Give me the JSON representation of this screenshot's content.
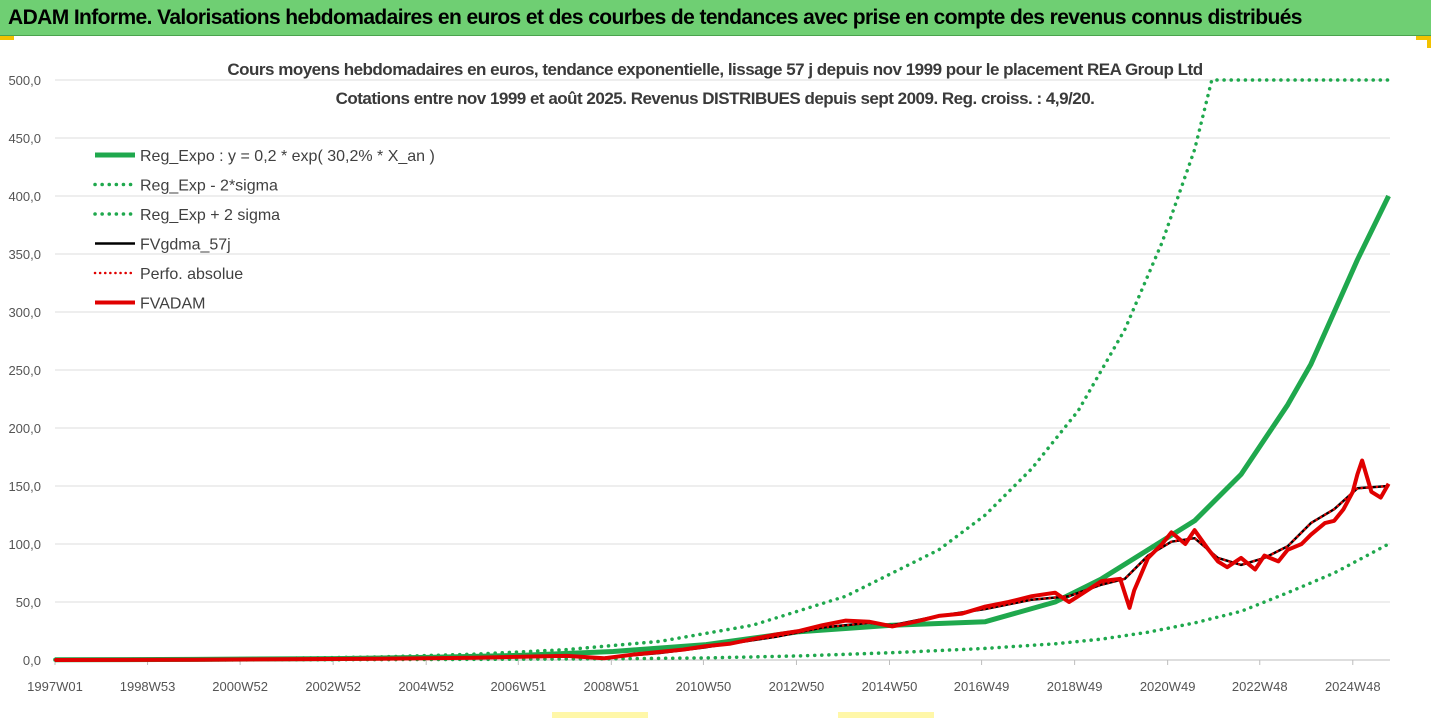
{
  "banner": {
    "title": "ADAM Informe. Valorisations hebdomadaires en euros et des courbes de tendances avec prise en compte des revenus connus distribués"
  },
  "chart_data": {
    "type": "line",
    "title_line1": "Cours moyens hebdomadaires en euros, tendance exponentielle, lissage 57 j depuis nov 1999 pour le placement REA Group Ltd",
    "title_line2": "Cotations entre nov 1999 et août 2025.  Revenus DISTRIBUES depuis sept 2009.  Reg. croiss. : 4,9/20.",
    "xlabel": "",
    "ylabel": "",
    "ylim": [
      0,
      500
    ],
    "grid": true,
    "legend_position": "top-left",
    "y_ticks": [
      "0,0",
      "50,0",
      "100,0",
      "150,0",
      "200,0",
      "250,0",
      "300,0",
      "350,0",
      "400,0",
      "450,0",
      "500,0"
    ],
    "x_ticks": [
      {
        "label": "1997W01",
        "year": 1997.0
      },
      {
        "label": "1998W53",
        "year": 1998.99
      },
      {
        "label": "2000W52",
        "year": 2000.98
      },
      {
        "label": "2002W52",
        "year": 2002.98
      },
      {
        "label": "2004W52",
        "year": 2004.98
      },
      {
        "label": "2006W51",
        "year": 2006.96
      },
      {
        "label": "2008W51",
        "year": 2008.96
      },
      {
        "label": "2010W50",
        "year": 2010.94
      },
      {
        "label": "2012W50",
        "year": 2012.94
      },
      {
        "label": "2014W50",
        "year": 2014.94
      },
      {
        "label": "2016W49",
        "year": 2016.92
      },
      {
        "label": "2018W49",
        "year": 2018.92
      },
      {
        "label": "2020W49",
        "year": 2020.92
      },
      {
        "label": "2022W48",
        "year": 2022.9
      },
      {
        "label": "2024W48",
        "year": 2024.9
      }
    ],
    "x_range": [
      1997.0,
      2025.7
    ],
    "series": [
      {
        "name": "Reg_Expo : y = 0,2 * exp( 30,2% *  X_an )",
        "color": "#1fa84d",
        "style": "solid",
        "width": 5,
        "x": [
          1997.0,
          2000.0,
          2003.0,
          2005.0,
          2007.0,
          2009.0,
          2011.0,
          2013.0,
          2015.0,
          2017.0,
          2018.5,
          2019.5,
          2020.5,
          2021.5,
          2022.5,
          2023.5,
          2024.0,
          2024.5,
          2025.0,
          2025.67
        ],
        "y": [
          0.2,
          0.5,
          1.2,
          2.2,
          4.0,
          7.3,
          13.3,
          24.4,
          30.0,
          33.0,
          50.0,
          70.0,
          95.0,
          120.0,
          160.0,
          220.0,
          255.0,
          300.0,
          345.0,
          400.0
        ]
      },
      {
        "name": "Reg_Exp - 2*sigma",
        "color": "#1fa84d",
        "style": "dotted",
        "width": 3.5,
        "x": [
          1997.0,
          2000.0,
          2003.0,
          2006.0,
          2009.0,
          2011.0,
          2013.0,
          2015.0,
          2017.0,
          2018.5,
          2019.5,
          2020.5,
          2021.5,
          2022.5,
          2023.5,
          2024.5,
          2025.67
        ],
        "y": [
          0.0,
          0.1,
          0.3,
          0.5,
          1.0,
          1.8,
          3.5,
          6.3,
          10.0,
          14.0,
          18.0,
          24.0,
          32.0,
          42.0,
          58.0,
          75.0,
          100.0
        ]
      },
      {
        "name": "Reg_Exp + 2 sigma",
        "color": "#1fa84d",
        "style": "dotted",
        "width": 3.5,
        "x": [
          1997.0,
          2000.0,
          2002.0,
          2004.0,
          2006.0,
          2008.0,
          2010.0,
          2012.0,
          2014.0,
          2016.0,
          2017.0,
          2018.0,
          2019.0,
          2020.0,
          2020.8,
          2021.5,
          2021.87,
          2022.5,
          2025.67
        ],
        "y": [
          0.5,
          0.9,
          1.5,
          2.7,
          5.0,
          9.0,
          16.0,
          30.0,
          55.0,
          95.0,
          125.0,
          165.0,
          215.0,
          285.0,
          360.0,
          440.0,
          500.0,
          500.0,
          500.0
        ]
      },
      {
        "name": "FVgdma_57j",
        "color": "#000000",
        "style": "solid",
        "width": 2.5,
        "x": [
          1997.0,
          2000.0,
          2004.0,
          2006.0,
          2008.0,
          2008.8,
          2010.0,
          2011.0,
          2012.5,
          2013.5,
          2014.5,
          2015.0,
          2016.0,
          2017.0,
          2018.0,
          2018.8,
          2019.5,
          2020.0,
          2020.5,
          2021.0,
          2021.5,
          2022.0,
          2022.5,
          2023.0,
          2023.5,
          2024.0,
          2024.5,
          2025.0,
          2025.67
        ],
        "y": [
          0.0,
          0.3,
          1.0,
          2.0,
          3.0,
          2.0,
          6.0,
          11.0,
          20.0,
          28.0,
          32.0,
          30.0,
          38.0,
          44.0,
          52.0,
          55.0,
          65.0,
          70.0,
          90.0,
          102.0,
          105.0,
          88.0,
          82.0,
          88.0,
          98.0,
          118.0,
          130.0,
          148.0,
          150.0
        ]
      },
      {
        "name": "Perfo. absolue",
        "color": "#e00000",
        "style": "dotted",
        "width": 2.5,
        "x": [
          1997.0,
          2000.0,
          2004.0,
          2006.0,
          2008.0,
          2008.8,
          2010.0,
          2011.0,
          2012.5,
          2013.5,
          2014.5,
          2015.0,
          2016.0,
          2017.0,
          2018.0,
          2018.8,
          2019.5,
          2020.0,
          2020.5,
          2021.0,
          2021.5,
          2022.0,
          2022.5,
          2023.0,
          2023.5,
          2024.0,
          2024.5,
          2025.0,
          2025.67
        ],
        "y": [
          0.0,
          0.3,
          1.0,
          2.0,
          3.0,
          2.0,
          6.0,
          11.0,
          20.0,
          28.0,
          32.0,
          30.0,
          38.0,
          44.0,
          52.0,
          55.0,
          65.0,
          70.0,
          90.0,
          102.0,
          105.0,
          88.0,
          82.0,
          88.0,
          98.0,
          118.0,
          130.0,
          148.0,
          150.0
        ]
      },
      {
        "name": "FVADAM",
        "color": "#e00000",
        "style": "solid",
        "width": 4,
        "x": [
          1997.0,
          2000.0,
          2004.0,
          2006.0,
          2008.0,
          2008.8,
          2009.5,
          2010.0,
          2010.5,
          2011.0,
          2011.5,
          2012.0,
          2012.5,
          2013.0,
          2013.5,
          2014.0,
          2014.5,
          2015.0,
          2015.5,
          2016.0,
          2016.5,
          2017.0,
          2017.5,
          2018.0,
          2018.5,
          2018.8,
          2019.0,
          2019.5,
          2019.9,
          2020.1,
          2020.2,
          2020.5,
          2020.8,
          2021.0,
          2021.3,
          2021.5,
          2021.8,
          2022.0,
          2022.2,
          2022.5,
          2022.8,
          2023.0,
          2023.3,
          2023.5,
          2023.8,
          2024.0,
          2024.3,
          2024.5,
          2024.7,
          2024.9,
          2025.0,
          2025.1,
          2025.3,
          2025.5,
          2025.67
        ],
        "y": [
          0.0,
          0.3,
          1.0,
          2.0,
          3.5,
          1.5,
          5.0,
          7.0,
          9.0,
          12.0,
          14.0,
          18.0,
          22.0,
          25.0,
          30.0,
          34.0,
          33.0,
          29.0,
          33.0,
          38.0,
          40.0,
          46.0,
          50.0,
          55.0,
          58.0,
          50.0,
          55.0,
          68.0,
          70.0,
          45.0,
          60.0,
          88.0,
          100.0,
          110.0,
          100.0,
          112.0,
          95.0,
          85.0,
          80.0,
          88.0,
          78.0,
          90.0,
          85.0,
          95.0,
          100.0,
          108.0,
          118.0,
          120.0,
          130.0,
          145.0,
          160.0,
          172.0,
          145.0,
          140.0,
          152.0
        ]
      }
    ]
  }
}
